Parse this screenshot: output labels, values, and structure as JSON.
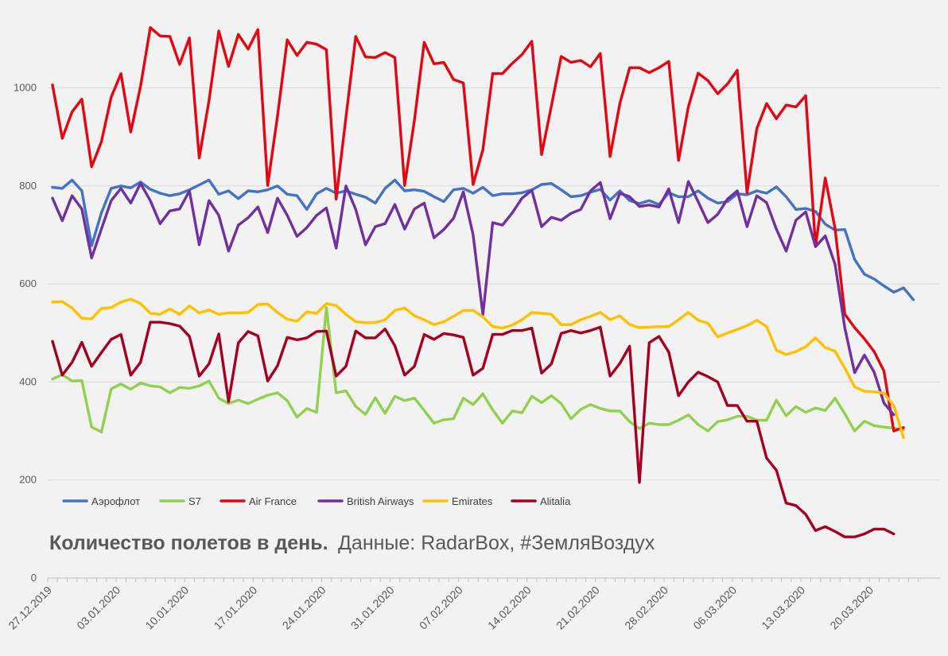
{
  "chart_data": {
    "type": "line",
    "title": "Количество полетов в день.",
    "subtitle": "Данные: RadarBox, #ЗемляВоздух",
    "ylim": [
      0,
      1130
    ],
    "yticks": [
      0,
      200,
      400,
      600,
      800,
      1000
    ],
    "x_start": "2019-12-27",
    "x_ticks": [
      "27.12.2019",
      "03.01.2020",
      "10.01.2020",
      "17.01.2020",
      "24.01.2020",
      "31.01.2020",
      "07.02.2020",
      "14.02.2020",
      "21.02.2020",
      "28.02.2020",
      "06.03.2020",
      "13.03.2020",
      "20.03.2020"
    ],
    "legend_position": "bottom-left",
    "grid": true,
    "series": [
      {
        "name": "Аэрофлот",
        "color": "#4472c4",
        "values": [
          797,
          795,
          812,
          790,
          678,
          745,
          795,
          800,
          796,
          808,
          793,
          785,
          780,
          784,
          792,
          802,
          812,
          783,
          790,
          774,
          790,
          788,
          792,
          800,
          783,
          780,
          752,
          784,
          795,
          785,
          790,
          783,
          777,
          765,
          795,
          812,
          790,
          792,
          789,
          778,
          768,
          792,
          795,
          785,
          797,
          780,
          784,
          784,
          786,
          792,
          803,
          805,
          792,
          778,
          780,
          787,
          793,
          771,
          790,
          770,
          764,
          770,
          762,
          786,
          778,
          778,
          790,
          775,
          765,
          768,
          784,
          782,
          790,
          785,
          798,
          778,
          752,
          754,
          748,
          722,
          710,
          711,
          650,
          620,
          610,
          596,
          583,
          592,
          568
        ]
      },
      {
        "name": "S7",
        "color": "#92d050",
        "values": [
          406,
          415,
          402,
          403,
          308,
          298,
          386,
          396,
          385,
          398,
          392,
          390,
          378,
          389,
          387,
          392,
          402,
          367,
          356,
          363,
          356,
          365,
          373,
          378,
          362,
          328,
          346,
          338,
          552,
          378,
          382,
          350,
          334,
          368,
          336,
          371,
          362,
          367,
          342,
          316,
          323,
          325,
          367,
          354,
          376,
          343,
          316,
          341,
          337,
          371,
          358,
          372,
          356,
          325,
          344,
          354,
          346,
          341,
          341,
          319,
          305,
          316,
          313,
          313,
          322,
          333,
          313,
          300,
          319,
          323,
          330,
          330,
          322,
          322,
          363,
          331,
          350,
          338,
          347,
          342,
          367,
          335,
          300,
          320,
          311,
          308,
          306,
          302
        ]
      },
      {
        "name": "Air France",
        "color": "#e30613",
        "values": [
          1006,
          897,
          951,
          977,
          839,
          890,
          981,
          1029,
          910,
          1003,
          1123,
          1106,
          1105,
          1048,
          1102,
          857,
          974,
          1116,
          1044,
          1109,
          1079,
          1119,
          801,
          942,
          1098,
          1066,
          1093,
          1089,
          1078,
          773,
          940,
          1105,
          1063,
          1062,
          1072,
          1062,
          801,
          934,
          1093,
          1049,
          1052,
          1017,
          1010,
          803,
          874,
          1029,
          1029,
          1050,
          1068,
          1095,
          864,
          963,
          1064,
          1052,
          1056,
          1043,
          1070,
          860,
          968,
          1041,
          1041,
          1031,
          1041,
          1054,
          852,
          961,
          1030,
          1015,
          988,
          1008,
          1036,
          786,
          917,
          968,
          937,
          965,
          961,
          984,
          677,
          816,
          713,
          538,
          511,
          488,
          462,
          422,
          300,
          307
        ]
      },
      {
        "name": "British Airways",
        "color": "#7030a0",
        "values": [
          775,
          729,
          780,
          753,
          653,
          712,
          770,
          795,
          765,
          805,
          770,
          723,
          749,
          753,
          790,
          680,
          770,
          740,
          667,
          720,
          735,
          757,
          705,
          775,
          740,
          697,
          715,
          740,
          755,
          673,
          800,
          752,
          680,
          717,
          723,
          762,
          712,
          753,
          765,
          694,
          711,
          734,
          788,
          700,
          537,
          725,
          720,
          745,
          775,
          791,
          717,
          736,
          730,
          744,
          752,
          790,
          807,
          733,
          785,
          778,
          758,
          761,
          757,
          794,
          725,
          809,
          768,
          725,
          742,
          773,
          790,
          717,
          780,
          766,
          712,
          667,
          730,
          747,
          676,
          698,
          640,
          510,
          419,
          455,
          420,
          357,
          333
        ]
      },
      {
        "name": "Emirates",
        "color": "#ffc000",
        "values": [
          563,
          564,
          551,
          530,
          529,
          550,
          552,
          563,
          569,
          560,
          540,
          538,
          549,
          538,
          555,
          541,
          547,
          538,
          541,
          541,
          542,
          558,
          559,
          542,
          528,
          524,
          543,
          540,
          560,
          556,
          538,
          523,
          521,
          521,
          527,
          546,
          551,
          535,
          527,
          517,
          523,
          534,
          546,
          546,
          533,
          513,
          510,
          516,
          527,
          542,
          540,
          538,
          517,
          517,
          527,
          534,
          542,
          527,
          535,
          517,
          511,
          512,
          513,
          513,
          527,
          542,
          526,
          520,
          492,
          500,
          507,
          515,
          526,
          513,
          465,
          456,
          462,
          472,
          490,
          470,
          463,
          428,
          390,
          381,
          380,
          377,
          352,
          286
        ]
      },
      {
        "name": "Alitalia",
        "color": "#a50021",
        "values": [
          483,
          414,
          440,
          481,
          432,
          460,
          487,
          497,
          414,
          440,
          522,
          522,
          519,
          514,
          493,
          412,
          437,
          498,
          360,
          480,
          503,
          494,
          402,
          433,
          491,
          486,
          490,
          503,
          504,
          412,
          432,
          504,
          490,
          490,
          508,
          474,
          414,
          432,
          497,
          487,
          499,
          496,
          491,
          414,
          428,
          497,
          497,
          505,
          505,
          510,
          418,
          437,
          499,
          505,
          500,
          505,
          512,
          412,
          438,
          473,
          195,
          480,
          493,
          461,
          372,
          400,
          420,
          411,
          400,
          352,
          352,
          320,
          320,
          245,
          220,
          153,
          148,
          130,
          97,
          105,
          95,
          84,
          84,
          90,
          100,
          100,
          90
        ]
      }
    ]
  }
}
